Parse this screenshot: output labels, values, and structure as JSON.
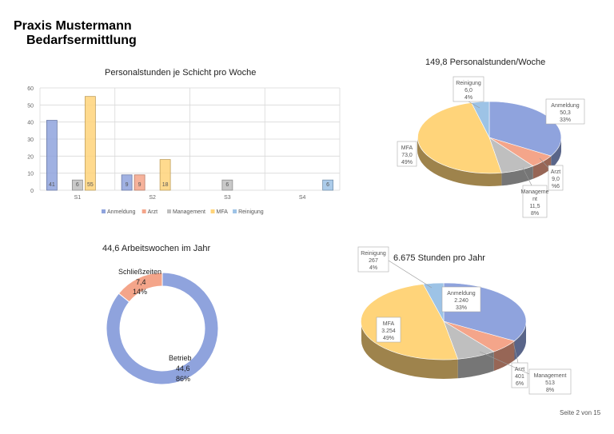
{
  "header": {
    "line1": "Praxis Mustermann",
    "line2": "Bedarfsermittlung"
  },
  "footer": {
    "page": "Seite 2 von 15"
  },
  "colors": {
    "Anmeldung": "#8fa3dd",
    "Arzt": "#f4a58a",
    "Management": "#bfbfbf",
    "MFA": "#ffd47a",
    "Reinigung": "#9dc3e6"
  },
  "chart_data": [
    {
      "type": "bar",
      "title": "Personalstunden  je Schicht  pro Woche",
      "categories": [
        "S1",
        "S2",
        "S3",
        "S4"
      ],
      "ylim": [
        0,
        60
      ],
      "yticks": [
        "0",
        "10",
        "20",
        "30",
        "40",
        "50",
        "60"
      ],
      "grid": true,
      "legend_position": "bottom",
      "series": [
        {
          "name": "Anmeldung",
          "values": [
            41,
            9,
            null,
            null
          ],
          "labels": [
            "41",
            "9",
            "",
            ""
          ]
        },
        {
          "name": "Arzt",
          "values": [
            null,
            9,
            null,
            null
          ],
          "labels": [
            "",
            "9",
            "",
            ""
          ]
        },
        {
          "name": "Management",
          "values": [
            6,
            null,
            6,
            null
          ],
          "labels": [
            "6",
            "",
            "6",
            ""
          ]
        },
        {
          "name": "MFA",
          "values": [
            55,
            18,
            null,
            null
          ],
          "labels": [
            "55",
            "18",
            "",
            ""
          ]
        },
        {
          "name": "Reinigung",
          "values": [
            null,
            null,
            null,
            6
          ],
          "labels": [
            "",
            "",
            "",
            "6"
          ]
        }
      ]
    },
    {
      "type": "pie",
      "title": "149,8  Personalstunden/Woche",
      "slices": [
        {
          "name": "Anmeldung",
          "value": 50.3,
          "value_label": "50,3",
          "percent": "33%"
        },
        {
          "name": "Arzt",
          "value": 9.0,
          "value_label": "9,0",
          "percent": "6%"
        },
        {
          "name": "Management",
          "value": 11.5,
          "value_label": "11,5",
          "percent": "8%"
        },
        {
          "name": "MFA",
          "value": 73.0,
          "value_label": "73,0",
          "percent": "49%"
        },
        {
          "name": "Reinigung",
          "value": 6.0,
          "value_label": "6,0",
          "percent": "4%"
        }
      ]
    },
    {
      "type": "pie",
      "title": "44,6  Arbeitswochen  im Jahr",
      "slices": [
        {
          "name": "Betrieb",
          "value": 44.6,
          "value_label": "44,6",
          "percent": "86%"
        },
        {
          "name": "Schließzeiten",
          "value": 7.4,
          "value_label": "7,4",
          "percent": "14%"
        }
      ]
    },
    {
      "type": "pie",
      "title": "6.675  Stunden  pro Jahr",
      "slices": [
        {
          "name": "Anmeldung",
          "value": 2240,
          "value_label": "2.240",
          "percent": "33%"
        },
        {
          "name": "Arzt",
          "value": 401,
          "value_label": "401",
          "percent": "6%"
        },
        {
          "name": "Management",
          "value": 513,
          "value_label": "513",
          "percent": "8%"
        },
        {
          "name": "MFA",
          "value": 3254,
          "value_label": "3.254",
          "percent": "49%"
        },
        {
          "name": "Reinigung",
          "value": 267,
          "value_label": "267",
          "percent": "4%"
        }
      ]
    }
  ]
}
